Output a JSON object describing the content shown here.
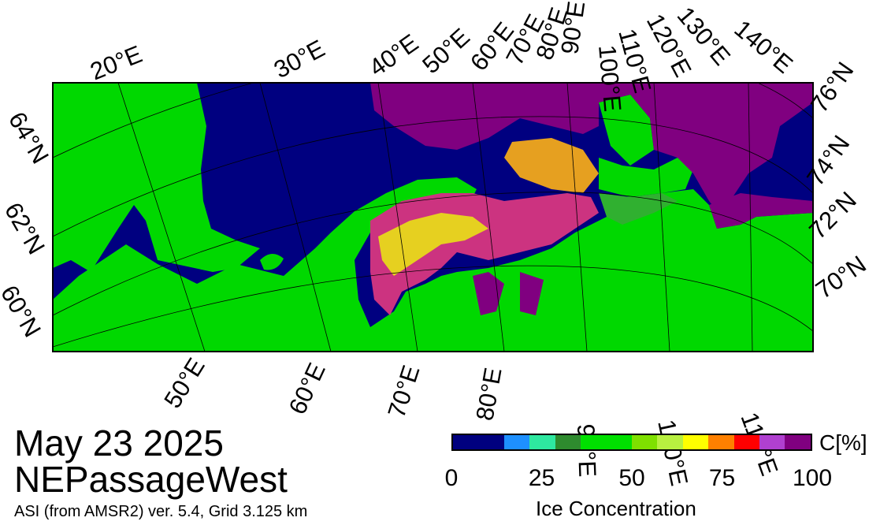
{
  "title": {
    "date": "May 23 2025",
    "region": "NEPassageWest",
    "source": "ASI (from AMSR2) ver. 5.4,  Grid 3.125 km"
  },
  "colorbar": {
    "unit": "C[%]",
    "title": "Ice Concentration",
    "ticks": [
      "0",
      "25",
      "50",
      "75",
      "100"
    ],
    "colors": [
      "#00007f",
      "#00007f",
      "#1e90ff",
      "#2ee8a0",
      "#2e8b2e",
      "#00e000",
      "#00e000",
      "#7fe000",
      "#b8f040",
      "#ffff00",
      "#ff8000",
      "#ff0000",
      "#b040d0",
      "#800080"
    ]
  },
  "map": {
    "colors": {
      "ocean": "#000080",
      "land": "#00d800",
      "ice_dense": "#800080"
    },
    "top_lon_labels": [
      "20°E",
      "30°E",
      "40°E",
      "50°E",
      "60°E",
      "70°E",
      "80°E",
      "90°E",
      "100°E",
      "110°E",
      "120°E",
      "130°E",
      "140°E"
    ],
    "bottom_lon_labels": [
      "50°E",
      "60°E",
      "70°E",
      "80°E",
      "90°E",
      "100°E",
      "110°E"
    ],
    "left_lat_labels": [
      "64°N",
      "62°N",
      "60°N"
    ],
    "right_lat_labels": [
      "76°N",
      "74°N",
      "72°N",
      "70°N"
    ]
  }
}
